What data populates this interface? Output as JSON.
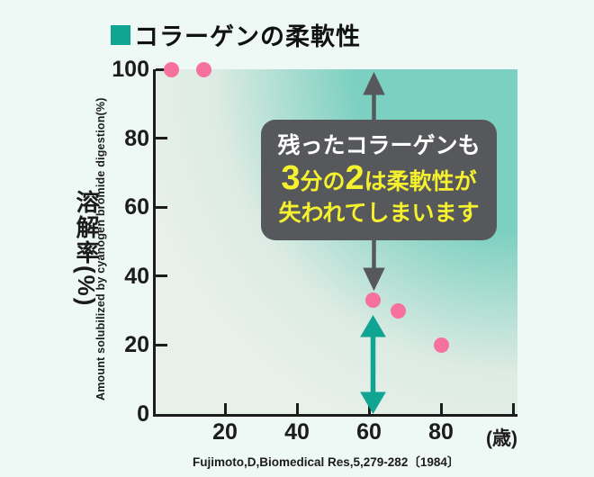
{
  "title": "コラーゲンの柔軟性",
  "colors": {
    "background": "#eef8f5",
    "teal_accent": "#10a492",
    "pink_point": "#f7719f",
    "dark_gray": "#57585b",
    "yellow_text": "#f5f12e",
    "plot_gradient_teal": "#7cd0c1",
    "plot_gradient_light": "#e7f0e9",
    "axis_black": "#1c1c1c"
  },
  "annotation": {
    "line1": "残ったコラーゲンも",
    "line2_big1": "3",
    "line2_mid": "分の",
    "line2_big2": "2",
    "line2_rest": "は柔軟性が",
    "line3": "失われてしまいます"
  },
  "axes": {
    "y_label_jp": "溶解率(%)",
    "y_label_en": "Amount solubilized by cyanogen bromide digestion(%)",
    "x_unit": "(歳)"
  },
  "citation": "Fujimoto,D,Biomedical Res,5,279-282〔1984〕",
  "chart_data": {
    "type": "scatter",
    "title": "コラーゲンの柔軟性",
    "series_name": "collagen-solubility-by-age",
    "x": [
      5,
      14,
      61,
      68,
      80
    ],
    "y": [
      100,
      100,
      33,
      30,
      20
    ],
    "xlabel": "(歳)",
    "ylabel": "溶解率(%) / Amount solubilized by cyanogen bromide digestion(%)",
    "xlim": [
      0,
      101
    ],
    "ylim": [
      0,
      100
    ],
    "xticks": [
      20,
      40,
      60,
      80
    ],
    "xticks_unlabeled": [
      100
    ],
    "yticks": [
      0,
      20,
      40,
      60,
      80,
      100
    ],
    "grid": false,
    "legend": false,
    "annotations": [
      {
        "type": "arrow-up-dark",
        "at_x": 61,
        "from_y": 85,
        "to_y": 99
      },
      {
        "type": "arrow-down-dark",
        "at_x": 61,
        "from_y": 50,
        "to_y": 36
      },
      {
        "type": "double-arrow-teal",
        "at_x": 61,
        "from_y": 28,
        "to_y": 0
      }
    ]
  }
}
